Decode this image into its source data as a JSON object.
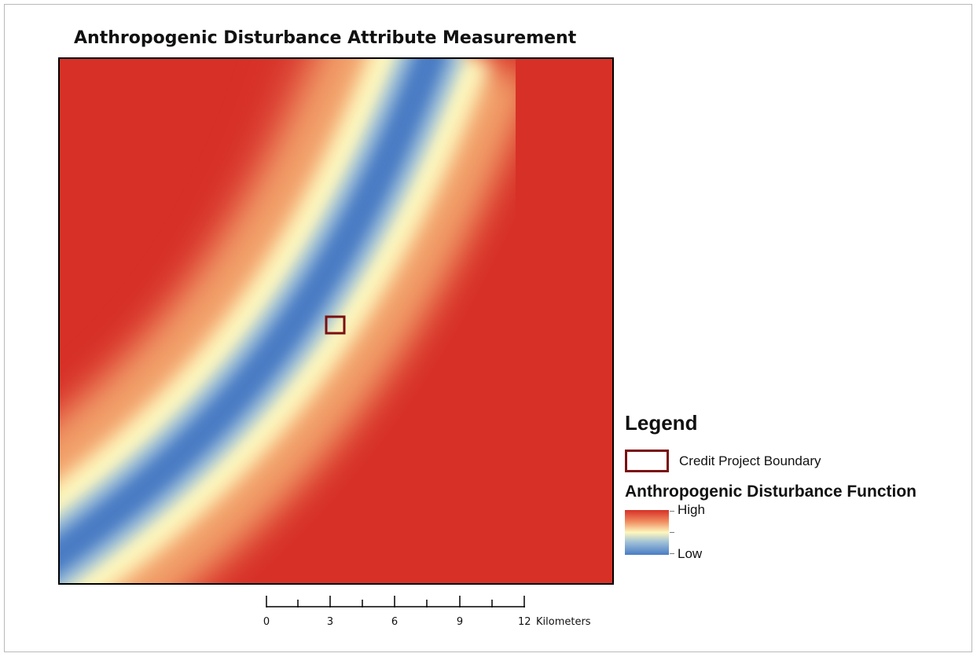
{
  "map": {
    "title": "Anthropogenic Disturbance Attribute Measurement",
    "colors": {
      "high": "#d73027",
      "mid": "#fdf7be",
      "low": "#4a7cc4",
      "boundary": "#7a1010"
    }
  },
  "legend": {
    "title": "Legend",
    "boundary_label": "Credit Project Boundary",
    "function_title": "Anthropogenic Disturbance Function",
    "high_label": "High",
    "low_label": "Low"
  },
  "scale_bar": {
    "labels": [
      "0",
      "3",
      "6",
      "9",
      "12"
    ],
    "unit": "Kilometers"
  }
}
